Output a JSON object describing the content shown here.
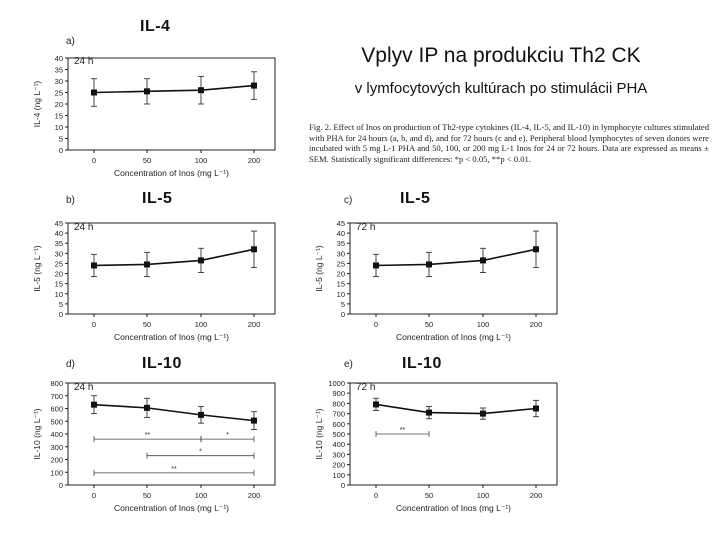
{
  "slide": {
    "title": "Vplyv IP na produkciu Th2 CK",
    "subtitle": "v lymfocytových kultúrach po stimulácii PHA",
    "caption": "Fig. 2. Effect of Inos on production of Th2-type cytokines (IL-4, IL-5, and IL-10) in lymphocyte cultures stimulated with PHA for 24 hours (a, b, and d), and for 72 hours (c and e). Peripheral blood lymphocytes of seven donors were incubated with 5 mg L-1 PHA and 50, 100, or 200 mg L-1 Inos for 24 or 72 hours. Data are expressed as means ± SEM. Statistically significant differences: *p < 0.05, **p < 0.01.",
    "labels": {
      "il4": "IL-4",
      "il5_b": "IL-5",
      "il5_c": "IL-5",
      "il10_d": "IL-10",
      "il10_e": "IL-10"
    }
  },
  "chart_data": [
    {
      "panel": "a)",
      "type": "line",
      "time_label": "24 h",
      "ylabel": "IL-4 (ng L⁻¹)",
      "xlabel": "Concentration of Inos (mg L⁻¹)",
      "categories": [
        "0",
        "50",
        "100",
        "200"
      ],
      "values": [
        25,
        25.5,
        26,
        28
      ],
      "errors": [
        6,
        5.5,
        6,
        6
      ],
      "ylim": [
        0,
        40
      ],
      "yticks": [
        0,
        5,
        10,
        15,
        20,
        25,
        30,
        35,
        40
      ],
      "significance": []
    },
    {
      "panel": "b)",
      "type": "line",
      "time_label": "24 h",
      "ylabel": "IL-5 (ng L⁻¹)",
      "xlabel": "Concentration of Inos (mg L⁻¹)",
      "categories": [
        "0",
        "50",
        "100",
        "200"
      ],
      "values": [
        24,
        24.5,
        26.5,
        32
      ],
      "errors": [
        5.5,
        6,
        6,
        9
      ],
      "ylim": [
        0,
        45
      ],
      "yticks": [
        0,
        5,
        10,
        15,
        20,
        25,
        30,
        35,
        40,
        45
      ],
      "significance": []
    },
    {
      "panel": "c)",
      "type": "line",
      "time_label": "72 h",
      "ylabel": "IL-5 (ng L⁻¹)",
      "xlabel": "Concentration of Inos (mg L⁻¹)",
      "categories": [
        "0",
        "50",
        "100",
        "200"
      ],
      "values": [
        24,
        24.5,
        26.5,
        32
      ],
      "errors": [
        5.5,
        6,
        6,
        9
      ],
      "ylim": [
        0,
        45
      ],
      "yticks": [
        0,
        5,
        10,
        15,
        20,
        25,
        30,
        35,
        40,
        45
      ],
      "significance": []
    },
    {
      "panel": "d)",
      "type": "line",
      "time_label": "24 h",
      "ylabel": "IL-10 (ng L⁻¹)",
      "xlabel": "Concentration of Inos (mg L⁻¹)",
      "categories": [
        "0",
        "50",
        "100",
        "200"
      ],
      "values": [
        630,
        605,
        550,
        505
      ],
      "errors": [
        70,
        75,
        65,
        70
      ],
      "ylim": [
        0,
        800
      ],
      "yticks": [
        0,
        100,
        200,
        300,
        400,
        500,
        600,
        700,
        800
      ],
      "significance": [
        {
          "from": 0,
          "to": 2,
          "value": 360,
          "label": "**"
        },
        {
          "from": 2,
          "to": 3,
          "value": 360,
          "label": "*"
        },
        {
          "from": 1,
          "to": 3,
          "value": 230,
          "label": "*"
        },
        {
          "from": 0,
          "to": 3,
          "value": 95,
          "label": "**"
        }
      ]
    },
    {
      "panel": "e)",
      "type": "line",
      "time_label": "72 h",
      "ylabel": "IL-10 (ng L⁻¹)",
      "xlabel": "Concentration of Inos (mg L⁻¹)",
      "categories": [
        "0",
        "50",
        "100",
        "200"
      ],
      "values": [
        790,
        710,
        700,
        750
      ],
      "errors": [
        60,
        60,
        55,
        80
      ],
      "ylim": [
        0,
        1000
      ],
      "yticks": [
        0,
        100,
        200,
        300,
        400,
        500,
        600,
        700,
        800,
        900,
        1000
      ],
      "significance": [
        {
          "from": 0,
          "to": 1,
          "value": 500,
          "label": "**"
        }
      ]
    }
  ]
}
